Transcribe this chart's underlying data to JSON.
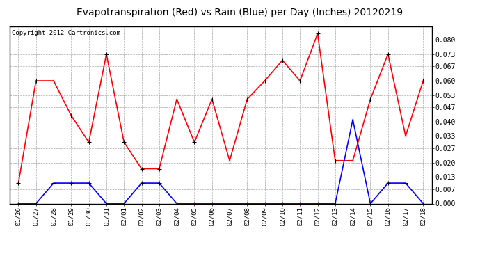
{
  "title": "Evapotranspiration (Red) vs Rain (Blue) per Day (Inches) 20120219",
  "copyright_text": "Copyright 2012 Cartronics.com",
  "dates": [
    "01/26",
    "01/27",
    "01/28",
    "01/29",
    "01/30",
    "01/31",
    "02/01",
    "02/02",
    "02/03",
    "02/04",
    "02/05",
    "02/06",
    "02/07",
    "02/08",
    "02/09",
    "02/10",
    "02/11",
    "02/12",
    "02/13",
    "02/14",
    "02/15",
    "02/16",
    "02/17",
    "02/18"
  ],
  "et_red": [
    0.01,
    0.06,
    0.06,
    0.043,
    0.03,
    0.073,
    0.03,
    0.017,
    0.017,
    0.051,
    0.03,
    0.051,
    0.021,
    0.051,
    0.06,
    0.07,
    0.06,
    0.083,
    0.021,
    0.021,
    0.051,
    0.073,
    0.033,
    0.06
  ],
  "rain_blue": [
    0.0,
    0.0,
    0.01,
    0.01,
    0.01,
    0.0,
    0.0,
    0.01,
    0.01,
    0.0,
    0.0,
    0.0,
    0.0,
    0.0,
    0.0,
    0.0,
    0.0,
    0.0,
    0.0,
    0.041,
    0.0,
    0.01,
    0.01,
    0.0
  ],
  "ylim": [
    0.0,
    0.0867
  ],
  "yticks": [
    0.0,
    0.007,
    0.013,
    0.02,
    0.027,
    0.033,
    0.04,
    0.047,
    0.053,
    0.06,
    0.067,
    0.073,
    0.08
  ],
  "red_color": "#ff0000",
  "blue_color": "#0000ff",
  "bg_color": "#ffffff",
  "grid_color": "#aaaaaa",
  "title_fontsize": 10,
  "copyright_fontsize": 6.5
}
